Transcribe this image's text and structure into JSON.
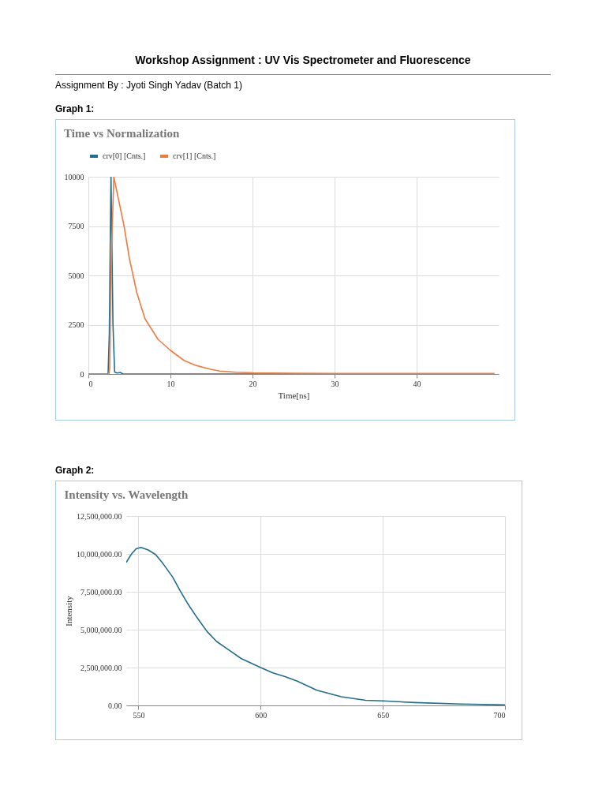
{
  "chart_data": [
    {
      "type": "line",
      "title": "Time vs Normalization",
      "xlabel": "Time[ns]",
      "annotations": [
        "Workshop Assignment : UV Vis Spectrometer and Fluorescence",
        "Assignment By : Jyoti Singh Yadav (Batch 1)",
        "Graph 1:"
      ],
      "series": [
        {
          "name": "crv[0] [Cnts.]",
          "color": "#1f6e96",
          "x": [
            0,
            2.4,
            2.55,
            2.7,
            2.76,
            2.85,
            3.0,
            3.2,
            3.5,
            3.9,
            4.2,
            4.5,
            10,
            20,
            30
          ],
          "values": [
            0,
            0,
            2000,
            8000,
            10000,
            7000,
            2500,
            100,
            50,
            80,
            0,
            0,
            0,
            0,
            0
          ]
        },
        {
          "name": "crv[1] [Cnts.]",
          "color": "#f47a3c",
          "x": [
            0,
            2.5,
            2.6,
            2.8,
            3.1,
            3.5,
            4.35,
            5.0,
            5.9,
            6.9,
            8.5,
            10,
            11.65,
            13,
            14.8,
            16,
            18,
            20,
            25,
            30,
            40,
            49.5
          ],
          "values": [
            0,
            0,
            300,
            6000,
            10000,
            9200,
            7500,
            5850,
            4130,
            2800,
            1750,
            1200,
            690,
            450,
            250,
            150,
            90,
            60,
            40,
            30,
            30,
            30
          ]
        }
      ],
      "xlim": [
        0,
        50
      ],
      "xticks": [
        0,
        10,
        20,
        30,
        40
      ],
      "ylim": [
        0,
        10000
      ],
      "yticks": [
        0,
        2500,
        5000,
        7500,
        10000
      ],
      "grid": true,
      "legend": "top"
    },
    {
      "type": "line",
      "title": "Intensity vs. Wavelength",
      "ylabel": "Intensity",
      "annotations": [
        "Graph 2:"
      ],
      "series": [
        {
          "color": "#1f6e8c",
          "x": [
            545,
            547,
            549,
            551,
            554,
            557,
            560,
            564,
            567,
            570,
            574,
            578,
            582,
            586,
            592,
            600,
            605,
            610,
            615,
            623,
            633,
            643,
            650,
            663,
            682,
            700
          ],
          "values": [
            9440000,
            9960000,
            10340000,
            10430000,
            10260000,
            9960000,
            9370000,
            8470000,
            7580000,
            6760000,
            5790000,
            4890000,
            4220000,
            3770000,
            3100000,
            2500000,
            2150000,
            1900000,
            1600000,
            1000000,
            570000,
            340000,
            300000,
            190000,
            90000,
            30000
          ]
        }
      ],
      "xlim": [
        545,
        700
      ],
      "xticks": [
        550,
        600,
        650,
        700
      ],
      "ylim": [
        0,
        12500000
      ],
      "yticks": [
        {
          "value": 0,
          "label": "0.00"
        },
        {
          "value": 2500000,
          "label": "2,500,000.00"
        },
        {
          "value": 5000000,
          "label": "5,000,000.00"
        },
        {
          "value": 7500000,
          "label": "7,500,000.00"
        },
        {
          "value": 10000000,
          "label": "10,000,000.00"
        },
        {
          "value": 12500000,
          "label": "12,500,000.00"
        }
      ],
      "grid": true
    }
  ]
}
